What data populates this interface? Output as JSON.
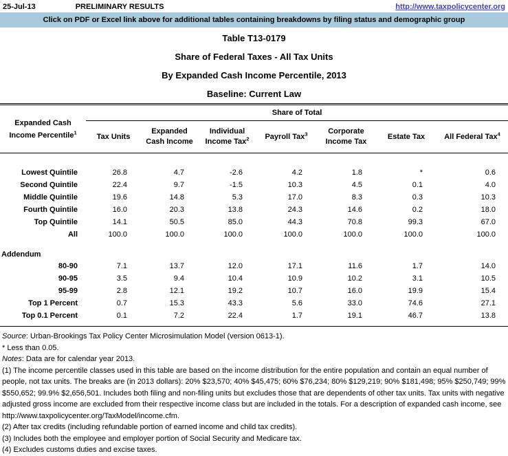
{
  "header": {
    "date": "25-Jul-13",
    "status": "PRELIMINARY RESULTS",
    "link": "http://www.taxpolicycenter.org",
    "banner": "Click on PDF or Excel link above for additional tables containing breakdowns by filing status and demographic group"
  },
  "titles": [
    "Table T13-0179",
    "Share of Federal Taxes - All Tax Units",
    "By Expanded Cash Income Percentile, 2013",
    "Baseline: Current Law"
  ],
  "table": {
    "group_header": "Share of Total",
    "row_header": {
      "text": "Expanded Cash Income Percentile",
      "sup": "1"
    },
    "columns": [
      {
        "label": "Tax Units",
        "sup": ""
      },
      {
        "label": "Expanded Cash Income",
        "sup": ""
      },
      {
        "label": "Individual Income Tax",
        "sup": "2"
      },
      {
        "label": "Payroll Tax",
        "sup": "3"
      },
      {
        "label": "Corporate Income Tax",
        "sup": ""
      },
      {
        "label": "Estate Tax",
        "sup": ""
      },
      {
        "label": "All Federal Tax",
        "sup": "4"
      }
    ],
    "rows": [
      {
        "label": "Lowest Quintile",
        "values": [
          "26.8",
          "4.7",
          "-2.6",
          "4.2",
          "1.8",
          "*",
          "0.6"
        ]
      },
      {
        "label": "Second Quintile",
        "values": [
          "22.4",
          "9.7",
          "-1.5",
          "10.3",
          "4.5",
          "0.1",
          "4.0"
        ]
      },
      {
        "label": "Middle Quintile",
        "values": [
          "19.6",
          "14.8",
          "5.3",
          "17.0",
          "8.3",
          "0.3",
          "10.3"
        ]
      },
      {
        "label": "Fourth Quintile",
        "values": [
          "16.0",
          "20.3",
          "13.8",
          "24.3",
          "14.6",
          "0.2",
          "18.0"
        ]
      },
      {
        "label": "Top Quintile",
        "values": [
          "14.1",
          "50.5",
          "85.0",
          "44.3",
          "70.8",
          "99.3",
          "67.0"
        ]
      },
      {
        "label": "All",
        "values": [
          "100.0",
          "100.0",
          "100.0",
          "100.0",
          "100.0",
          "100.0",
          "100.0"
        ]
      }
    ],
    "addendum_label": "Addendum",
    "addendum_rows": [
      {
        "label": "80-90",
        "values": [
          "7.1",
          "13.7",
          "12.0",
          "17.1",
          "11.6",
          "1.7",
          "14.0"
        ]
      },
      {
        "label": "90-95",
        "values": [
          "3.5",
          "9.4",
          "10.4",
          "10.9",
          "10.2",
          "3.1",
          "10.5"
        ]
      },
      {
        "label": "95-99",
        "values": [
          "2.8",
          "12.1",
          "19.2",
          "10.7",
          "16.0",
          "19.9",
          "15.4"
        ]
      },
      {
        "label": "Top 1 Percent",
        "values": [
          "0.7",
          "15.3",
          "43.3",
          "5.6",
          "33.0",
          "74.6",
          "27.1"
        ]
      },
      {
        "label": "Top 0.1 Percent",
        "values": [
          "0.1",
          "7.2",
          "22.4",
          "1.7",
          "19.1",
          "46.7",
          "13.8"
        ]
      }
    ]
  },
  "notes": {
    "source_label": "Source",
    "source_text": ": Urban-Brookings Tax Policy Center Microsimulation Model (version 0613-1).",
    "asterisk": "* Less than 0.05.",
    "notes_label": "Notes",
    "notes_text": ": Data are for calendar year 2013.",
    "items": [
      "(1) The income percentile classes used in this table are based on the income distribution for the entire population and contain an equal number of people, not tax units. The breaks are (in 2013 dollars): 20% $23,570; 40% $45,475; 60% $76,234; 80% $129,219; 90% $181,498; 95% $250,749; 99% $550,652; 99.9% $2,656,501. Includes both filing and non-filing units but excludes those that are dependents of other tax units. Tax units with negative adjusted gross income are excluded from their respective income class but are included in the totals. For a description of expanded cash income, see http://www.taxpolicycenter.org/TaxModel/income.cfm.",
      "(2) After tax credits (including refundable portion of earned income and child tax credits).",
      "(3) Includes both the employee and employer portion of Social Security and Medicare tax.",
      "(4) Excludes customs duties and excise taxes."
    ]
  },
  "colors": {
    "banner_bg": "#A7CBDC",
    "link": "#4042C7"
  }
}
